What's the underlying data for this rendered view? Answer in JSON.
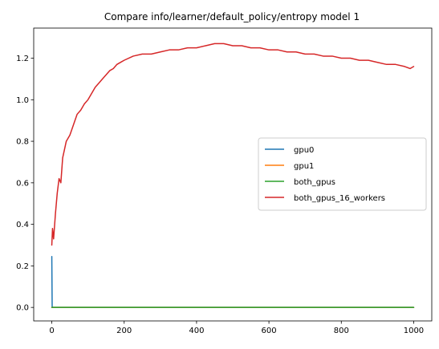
{
  "chart_data": {
    "type": "line",
    "title": "Compare info/learner/default_policy/entropy model 1",
    "xlabel": "",
    "ylabel": "",
    "xlim": [
      -50,
      1050
    ],
    "ylim": [
      -0.065,
      1.345
    ],
    "xticks": [
      0,
      200,
      400,
      600,
      800,
      1000
    ],
    "xtick_labels": [
      "0",
      "200",
      "400",
      "600",
      "800",
      "1000"
    ],
    "yticks": [
      0.0,
      0.2,
      0.4,
      0.6,
      0.8,
      1.0,
      1.2
    ],
    "ytick_labels": [
      "0.0",
      "0.2",
      "0.4",
      "0.6",
      "0.8",
      "1.0",
      "1.2"
    ],
    "grid": false,
    "legend_position": "center-right",
    "series": [
      {
        "name": "gpu0",
        "color": "#1f77b4",
        "x": [
          0,
          1,
          2,
          3,
          10,
          50,
          100,
          200,
          400,
          600,
          800,
          1000
        ],
        "y": [
          0.245,
          0.004,
          0.001,
          0.0,
          0.0,
          0.0,
          0.0,
          0.0,
          0.0,
          0.0,
          0.0,
          0.0
        ]
      },
      {
        "name": "gpu1",
        "color": "#ff7f0e",
        "x": [
          0,
          200,
          400,
          600,
          800,
          1000
        ],
        "y": [
          0.0,
          0.0,
          0.0,
          0.0,
          0.0,
          0.0
        ]
      },
      {
        "name": "both_gpus",
        "color": "#2ca02c",
        "x": [
          0,
          200,
          400,
          600,
          800,
          1000
        ],
        "y": [
          0.0,
          0.0,
          0.0,
          0.0,
          0.0,
          0.0
        ]
      },
      {
        "name": "both_gpus_16_workers",
        "color": "#d62728",
        "x": [
          0,
          2,
          5,
          10,
          15,
          20,
          25,
          30,
          35,
          40,
          50,
          60,
          70,
          80,
          90,
          100,
          110,
          120,
          130,
          140,
          150,
          160,
          170,
          180,
          190,
          200,
          225,
          250,
          275,
          300,
          325,
          350,
          375,
          400,
          425,
          450,
          475,
          500,
          525,
          550,
          575,
          600,
          625,
          650,
          675,
          700,
          725,
          750,
          775,
          800,
          825,
          850,
          875,
          900,
          925,
          950,
          975,
          990,
          1000
        ],
        "y": [
          0.3,
          0.38,
          0.33,
          0.45,
          0.55,
          0.62,
          0.6,
          0.72,
          0.76,
          0.8,
          0.83,
          0.88,
          0.93,
          0.95,
          0.98,
          1.0,
          1.03,
          1.06,
          1.08,
          1.1,
          1.12,
          1.14,
          1.15,
          1.17,
          1.18,
          1.19,
          1.21,
          1.22,
          1.22,
          1.23,
          1.24,
          1.24,
          1.25,
          1.25,
          1.26,
          1.27,
          1.27,
          1.26,
          1.26,
          1.25,
          1.25,
          1.24,
          1.24,
          1.23,
          1.23,
          1.22,
          1.22,
          1.21,
          1.21,
          1.2,
          1.2,
          1.19,
          1.19,
          1.18,
          1.17,
          1.17,
          1.16,
          1.15,
          1.16
        ]
      }
    ]
  }
}
